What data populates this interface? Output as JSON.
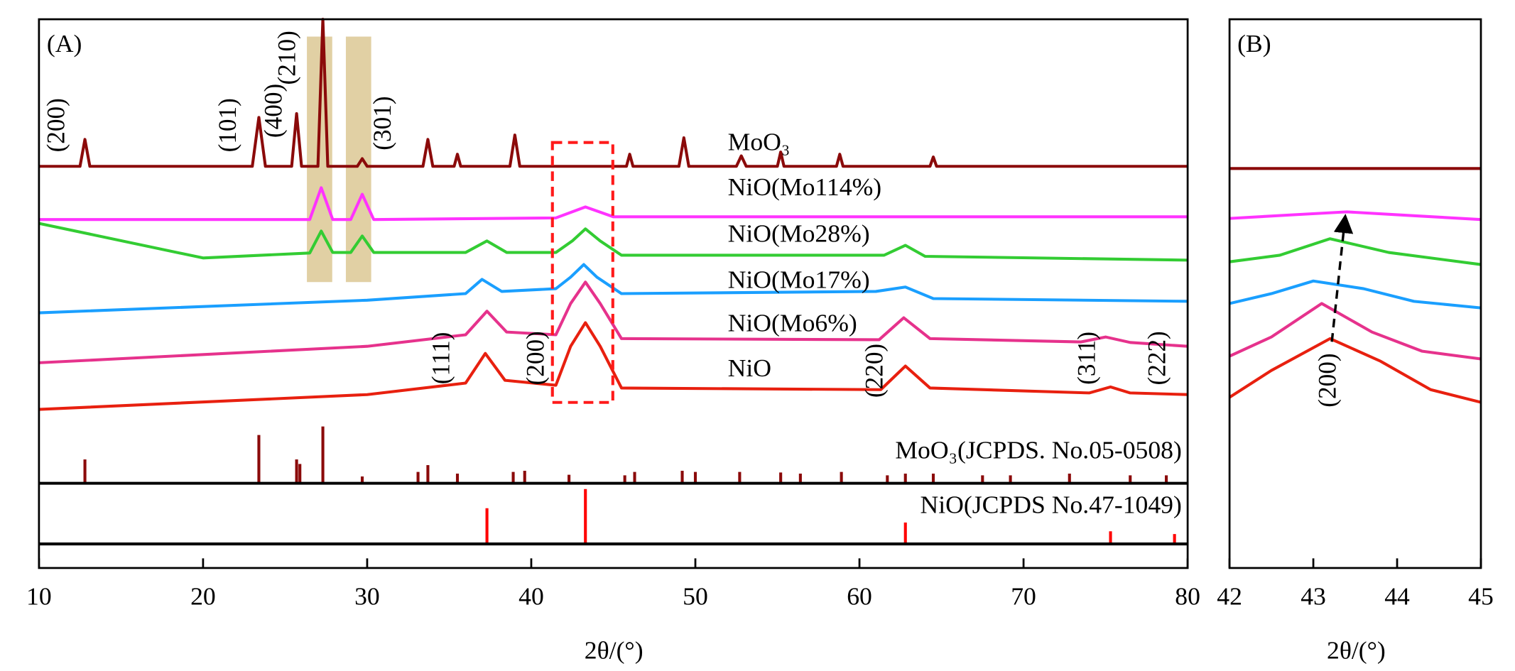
{
  "chart_data": [
    {
      "type": "line",
      "panel": "(A)",
      "xlabel": "2θ/(°)",
      "xlim": [
        10,
        80
      ],
      "xticks": [
        10,
        20,
        30,
        40,
        50,
        60,
        70,
        80
      ],
      "ylim": [
        0,
        100
      ],
      "series": [
        {
          "name": "MoO₃",
          "color": "#8b0a0a",
          "x": [
            10,
            12.5,
            12.8,
            13.1,
            23.0,
            23.4,
            23.8,
            25.4,
            25.7,
            26.0,
            27.0,
            27.3,
            27.6,
            29.4,
            29.7,
            30.0,
            33.4,
            33.7,
            34.0,
            35.3,
            35.5,
            35.7,
            38.7,
            39.0,
            39.3,
            45.8,
            46.0,
            46.2,
            49.0,
            49.3,
            49.6,
            52.5,
            52.8,
            53.1,
            55.0,
            55.2,
            55.4,
            58.6,
            58.8,
            59.0,
            64.3,
            64.5,
            64.7,
            80
          ],
          "values": [
            73.2,
            73.2,
            78.1,
            73.2,
            73.2,
            82.1,
            73.2,
            73.2,
            82.8,
            73.2,
            73.2,
            100,
            73.2,
            73.2,
            74.6,
            73.2,
            73.2,
            78.1,
            73.2,
            73.2,
            75.4,
            73.2,
            73.2,
            78.9,
            73.2,
            73.2,
            75.4,
            73.2,
            73.2,
            78.4,
            73.2,
            73.2,
            75.1,
            73.2,
            73.2,
            75.8,
            73.2,
            73.2,
            75.4,
            73.2,
            73.2,
            74.9,
            73.2,
            73.2
          ]
        },
        {
          "name": "NiO(Mo114%)",
          "color": "#ff33ff",
          "x": [
            10,
            26.5,
            27.2,
            27.9,
            29.0,
            29.7,
            30.4,
            41.5,
            43.3,
            45.0,
            80
          ],
          "values": [
            63.5,
            63.5,
            69.3,
            63.5,
            63.5,
            68.1,
            63.5,
            63.8,
            65.8,
            64.0,
            64.0
          ]
        },
        {
          "name": "NiO(Mo28%)",
          "color": "#33cc33",
          "x": [
            10,
            20,
            26.5,
            27.2,
            27.9,
            29.0,
            29.7,
            30.4,
            36.0,
            37.3,
            38.5,
            41.5,
            42.5,
            43.3,
            44.2,
            45.5,
            61.5,
            62.8,
            64.0,
            80
          ],
          "values": [
            62.8,
            56.5,
            57.4,
            61.4,
            57.5,
            57.5,
            60.5,
            57.5,
            57.5,
            59.6,
            57.5,
            57.5,
            59.6,
            61.8,
            59.6,
            57.0,
            57.0,
            58.8,
            56.8,
            56.1
          ]
        },
        {
          "name": "NiO(Mo17%)",
          "color": "#1a9fff",
          "x": [
            10,
            30,
            36.0,
            37.0,
            38.2,
            41.5,
            42.4,
            43.2,
            44.0,
            45.5,
            61.0,
            62.8,
            64.5,
            80
          ],
          "values": [
            46.5,
            48.8,
            50.0,
            52.6,
            50.4,
            50.9,
            53.0,
            55.3,
            53.0,
            50.0,
            50.4,
            51.2,
            49.1,
            48.6
          ]
        },
        {
          "name": "NiO(Mo6%)",
          "color": "#e6328c",
          "x": [
            10,
            30,
            36.0,
            37.3,
            38.5,
            41.5,
            42.4,
            43.3,
            44.2,
            45.5,
            61.2,
            62.7,
            64.3,
            73.5,
            75.0,
            76.5,
            80
          ],
          "values": [
            37.4,
            40.4,
            42.5,
            46.8,
            43.0,
            42.5,
            48.2,
            52.1,
            48.2,
            41.8,
            41.6,
            45.6,
            41.8,
            41.2,
            42.1,
            41.1,
            40.4
          ]
        },
        {
          "name": "NiO",
          "color": "#e8200f",
          "x": [
            10,
            30,
            36.0,
            37.2,
            38.4,
            41.5,
            42.4,
            43.3,
            44.2,
            45.5,
            61.3,
            62.8,
            64.3,
            74.0,
            75.3,
            76.5,
            80
          ],
          "values": [
            28.9,
            31.6,
            33.7,
            39.1,
            34.2,
            33.3,
            40.4,
            44.7,
            40.4,
            32.8,
            32.5,
            36.8,
            32.8,
            31.9,
            33.0,
            31.9,
            31.6
          ]
        }
      ],
      "references": [
        {
          "name": "MoO₃(JCPDS. No.05-0508)",
          "color": "#8b0a0a",
          "x": [
            12.8,
            23.4,
            25.7,
            25.9,
            27.3,
            29.7,
            33.1,
            33.7,
            35.5,
            38.9,
            39.6,
            42.3,
            45.7,
            46.3,
            49.2,
            50.0,
            52.7,
            55.2,
            56.4,
            58.9,
            61.7,
            62.8,
            64.5,
            67.5,
            69.2,
            72.8,
            76.5,
            78.7
          ],
          "values": [
            42,
            85,
            42,
            34,
            100,
            12,
            20,
            32,
            17,
            20,
            22,
            15,
            14,
            20,
            22,
            20,
            20,
            19,
            17,
            20,
            14,
            17,
            17,
            14,
            14,
            17,
            14,
            14
          ]
        },
        {
          "name": "NiO(JCPDS No.47-1049)",
          "color": "#ff0000",
          "x": [
            37.3,
            43.3,
            62.8,
            75.3,
            79.2
          ],
          "values": [
            65,
            100,
            39,
            23,
            18
          ]
        }
      ],
      "annotations": [
        "(200)",
        "(101)",
        "(400)",
        "(210)",
        "(301)",
        "(111)",
        "(200)",
        "(220)",
        "(311)",
        "(222)"
      ]
    },
    {
      "type": "line",
      "panel": "(B)",
      "xlabel": "2θ/(°)",
      "xlim": [
        42,
        45
      ],
      "xticks": [
        42,
        43,
        44,
        45
      ],
      "ylim": [
        0,
        100
      ],
      "series": [
        {
          "color": "#8b0a0a",
          "x": [
            42,
            45
          ],
          "values": [
            72.8,
            72.8
          ]
        },
        {
          "color": "#ff33ff",
          "x": [
            42,
            42.8,
            43.4,
            44.2,
            45
          ],
          "values": [
            63.7,
            64.4,
            64.9,
            64.2,
            63.5
          ]
        },
        {
          "color": "#33cc33",
          "x": [
            42,
            42.6,
            43.2,
            43.9,
            45
          ],
          "values": [
            55.8,
            57.0,
            60.0,
            57.5,
            55.3
          ]
        },
        {
          "color": "#1a9fff",
          "x": [
            42,
            42.5,
            43.0,
            43.6,
            44.2,
            45
          ],
          "values": [
            48.2,
            50.0,
            52.3,
            50.9,
            48.6,
            47.4
          ]
        },
        {
          "color": "#e6328c",
          "x": [
            42,
            42.5,
            43.1,
            43.7,
            44.3,
            45
          ],
          "values": [
            38.6,
            42.1,
            48.2,
            43.0,
            39.5,
            38.1
          ]
        },
        {
          "color": "#e8200f",
          "x": [
            42,
            42.5,
            43.2,
            43.8,
            44.4,
            45
          ],
          "values": [
            31.1,
            36.0,
            41.8,
            37.7,
            32.5,
            30.2
          ]
        }
      ],
      "annotations": [
        "(200)"
      ]
    }
  ]
}
